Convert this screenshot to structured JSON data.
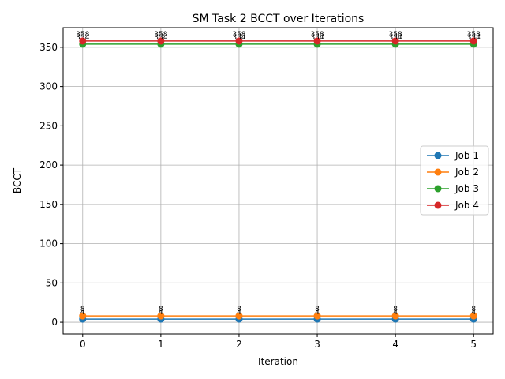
{
  "chart_data": {
    "type": "line",
    "title": "SM Task 2 BCCT over Iterations",
    "xlabel": "Iteration",
    "ylabel": "BCCT",
    "x": [
      0,
      1,
      2,
      3,
      4,
      5
    ],
    "xlim": [
      -0.25,
      5.25
    ],
    "ylim": [
      -15,
      375
    ],
    "xticks": [
      0,
      1,
      2,
      3,
      4,
      5
    ],
    "yticks": [
      0,
      50,
      100,
      150,
      200,
      250,
      300,
      350
    ],
    "grid": true,
    "legend_position": "center-right",
    "series": [
      {
        "name": "Job 1",
        "color": "#1f77b4",
        "values": [
          4,
          4,
          4,
          4,
          4,
          4
        ]
      },
      {
        "name": "Job 2",
        "color": "#ff7f0e",
        "values": [
          8,
          8,
          8,
          8,
          8,
          8
        ]
      },
      {
        "name": "Job 3",
        "color": "#2ca02c",
        "values": [
          354,
          354,
          354,
          354,
          354,
          354
        ]
      },
      {
        "name": "Job 4",
        "color": "#d62728",
        "values": [
          358,
          358,
          358,
          358,
          358,
          358
        ]
      }
    ]
  }
}
